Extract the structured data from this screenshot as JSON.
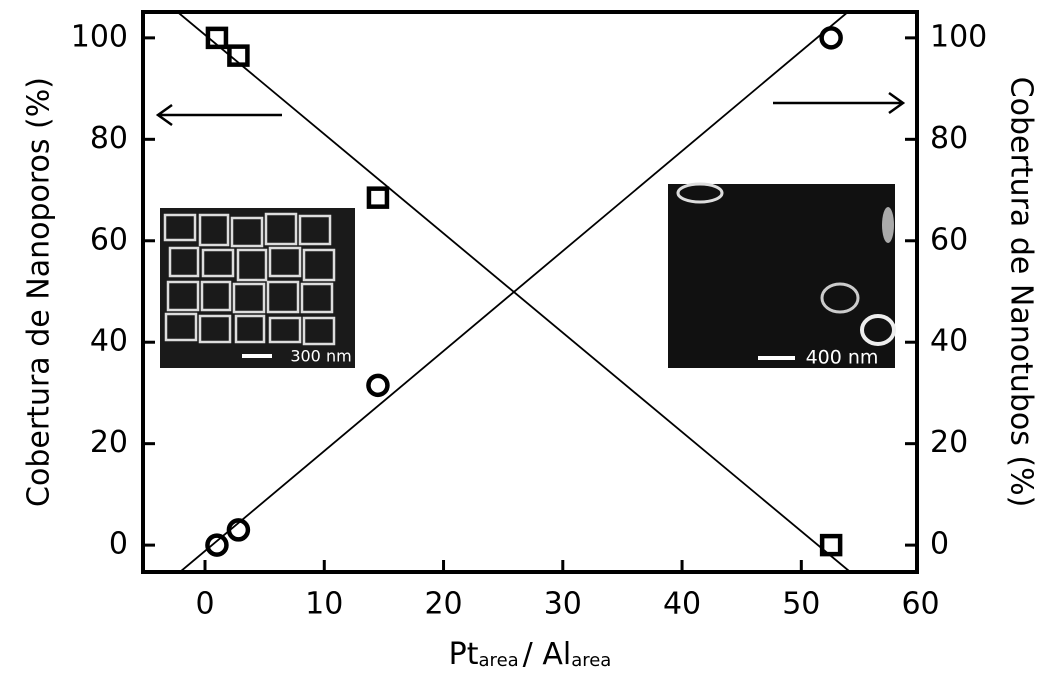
{
  "chart_data": {
    "type": "scatter",
    "ylabel": "Cobertura de Nanoporos (%)",
    "y2label": "Cobertura de Nanotubos (%)",
    "xlabel_parts": [
      "Pt",
      "area",
      "/ Al",
      "area"
    ],
    "xlim": [
      -5.2,
      59.7
    ],
    "xticks": [
      0,
      10,
      20,
      30,
      40,
      50,
      60
    ],
    "ylim": [
      -5.3,
      105.1
    ],
    "yticks": [
      0,
      20,
      40,
      60,
      80,
      100
    ],
    "y2lim": [
      -5.3,
      105.1
    ],
    "y2ticks": [
      0,
      20,
      40,
      60,
      80,
      100
    ],
    "series": [
      {
        "marker": "square",
        "color": "#000000",
        "x": [
          1,
          2.8,
          14.5,
          52.5
        ],
        "values": [
          100,
          96.5,
          68.5,
          0
        ]
      },
      {
        "marker": "circle",
        "color": "#000000",
        "axis": "y2",
        "x": [
          1,
          2.8,
          14.5,
          52.5
        ],
        "values": [
          0,
          3,
          31.5,
          100
        ]
      },
      {
        "type": "line",
        "color": "#000000",
        "x": [
          -2.3,
          54.1
        ],
        "values": [
          105.1,
          -5.3
        ]
      },
      {
        "type": "line",
        "color": "#000000",
        "axis": "y2",
        "x": [
          -2.1,
          53.9
        ],
        "values": [
          -5.3,
          105.1
        ]
      }
    ],
    "insets": [
      {
        "scale_label": "300 nm"
      },
      {
        "scale_label": "400 nm"
      }
    ]
  }
}
